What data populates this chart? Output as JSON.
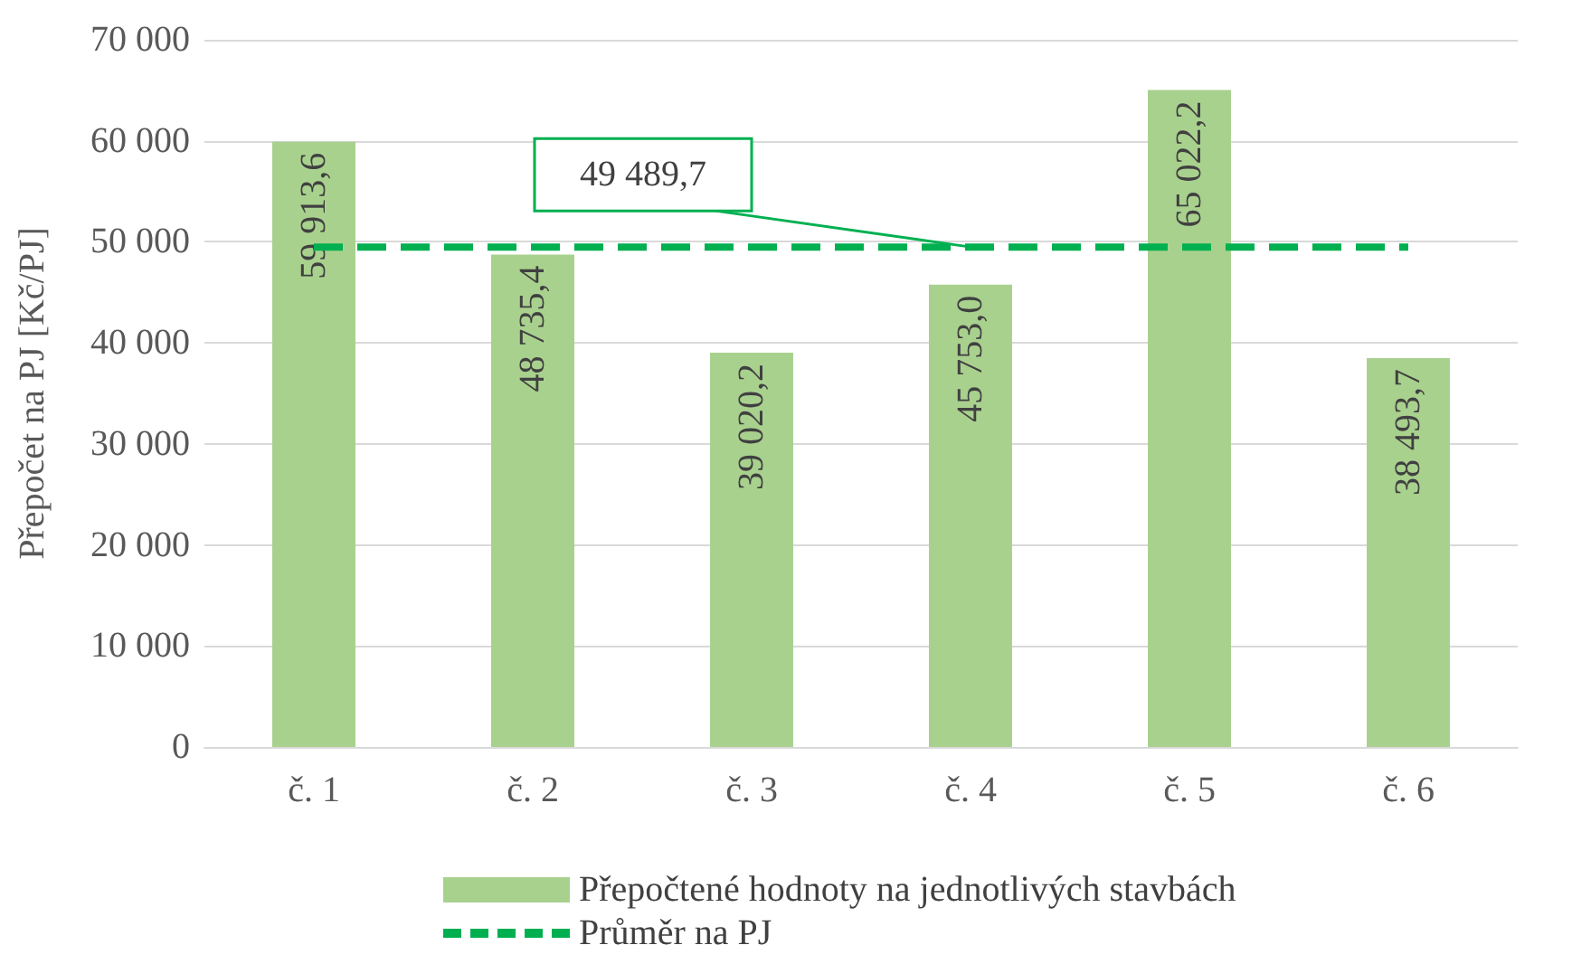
{
  "chart_data": {
    "type": "bar",
    "ylabel": "Přepočet na PJ [Kč/PJ]",
    "categories": [
      "č. 1",
      "č. 2",
      "č. 3",
      "č. 4",
      "č. 5",
      "č. 6"
    ],
    "series": [
      {
        "name": "Přepočtené hodnoty na jednotlivých stavbách",
        "color": "#a9d18e",
        "values": [
          59913.6,
          48735.4,
          39020.2,
          45753.0,
          65022.2,
          38493.7
        ],
        "value_labels": [
          "59 913,6",
          "48 735,4",
          "39 020,2",
          "45 753,0",
          "65 022,2",
          "38 493,7"
        ]
      },
      {
        "name": "Průměr na PJ",
        "type": "line",
        "color": "#00b050",
        "line_style": "dashed",
        "marker": "none",
        "values": [
          49489.7,
          49489.7,
          49489.7,
          49489.7,
          49489.7,
          49489.7
        ]
      }
    ],
    "annotations": [
      {
        "text": "49 489,7",
        "y": 49489.7
      }
    ],
    "ylim": [
      0,
      70000
    ],
    "yticks": [
      {
        "value": 0,
        "label": "0"
      },
      {
        "value": 10000,
        "label": "10 000"
      },
      {
        "value": 20000,
        "label": "20 000"
      },
      {
        "value": 30000,
        "label": "30 000"
      },
      {
        "value": 40000,
        "label": "40 000"
      },
      {
        "value": 50000,
        "label": "50 000"
      },
      {
        "value": 60000,
        "label": "60 000"
      },
      {
        "value": 70000,
        "label": "70 000"
      }
    ],
    "grid": "y",
    "legend": "bottom"
  }
}
